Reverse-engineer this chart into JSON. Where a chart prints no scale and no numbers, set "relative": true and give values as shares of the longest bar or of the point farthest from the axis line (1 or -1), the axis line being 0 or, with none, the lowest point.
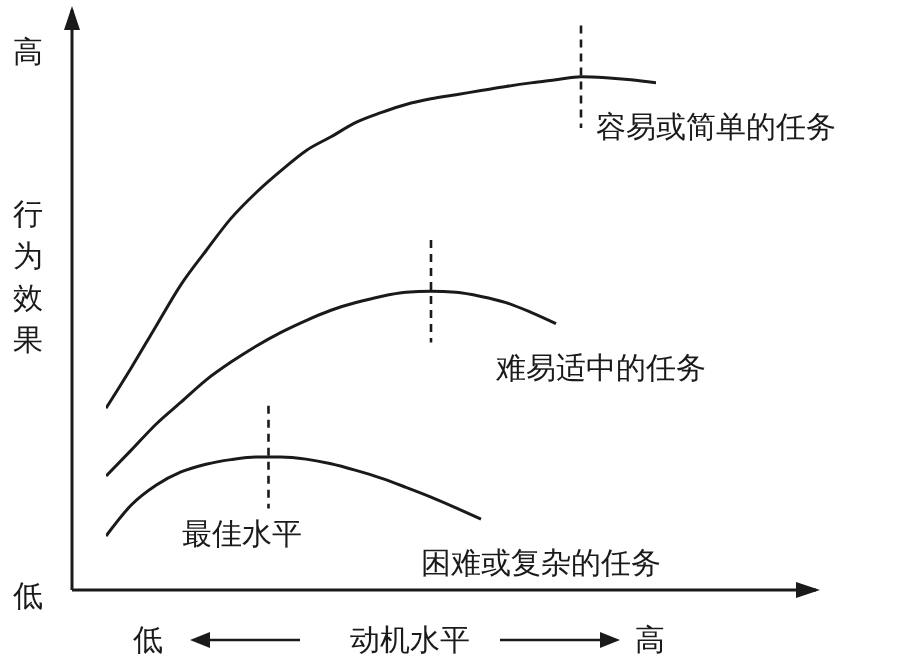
{
  "chart_data": {
    "type": "line",
    "relative": true,
    "ylabel": "行为效果",
    "xlabel": "动机水平",
    "tick_labels": false,
    "categories": [
      null,
      null,
      null,
      null,
      null,
      null,
      null,
      null,
      null,
      null,
      null,
      null,
      null,
      null,
      null,
      null,
      null,
      null,
      null,
      null,
      null,
      null,
      null
    ],
    "series": [
      {
        "name": "容易或简单的任务",
        "color": "#1a1a1a",
        "values": [
          0.354,
          0.432,
          0.514,
          0.595,
          0.661,
          0.724,
          0.774,
          0.817,
          0.856,
          0.883,
          0.911,
          0.93,
          0.946,
          0.957,
          0.965,
          0.973,
          0.981,
          0.988,
          0.994,
          1.0,
          0.998,
          0.994,
          0.988
        ]
      },
      {
        "name": "难易适中的任务",
        "color": "#1a1a1a",
        "values": [
          0.222,
          0.272,
          0.323,
          0.366,
          0.409,
          0.444,
          0.475,
          0.502,
          0.525,
          0.545,
          0.56,
          0.572,
          0.58,
          0.582,
          0.58,
          0.572,
          0.56,
          0.541,
          0.519,
          null,
          null,
          null,
          null
        ]
      },
      {
        "name": "困难或复杂的任务",
        "color": "#1a1a1a",
        "values": [
          0.105,
          0.165,
          0.204,
          0.23,
          0.245,
          0.254,
          0.259,
          0.259,
          0.255,
          0.246,
          0.233,
          0.218,
          0.2,
          0.181,
          0.16,
          0.138,
          null,
          null,
          null,
          null,
          null,
          null,
          null
        ]
      }
    ],
    "annotations": [
      "最佳水平",
      "高",
      "低",
      "低",
      "高"
    ]
  }
}
